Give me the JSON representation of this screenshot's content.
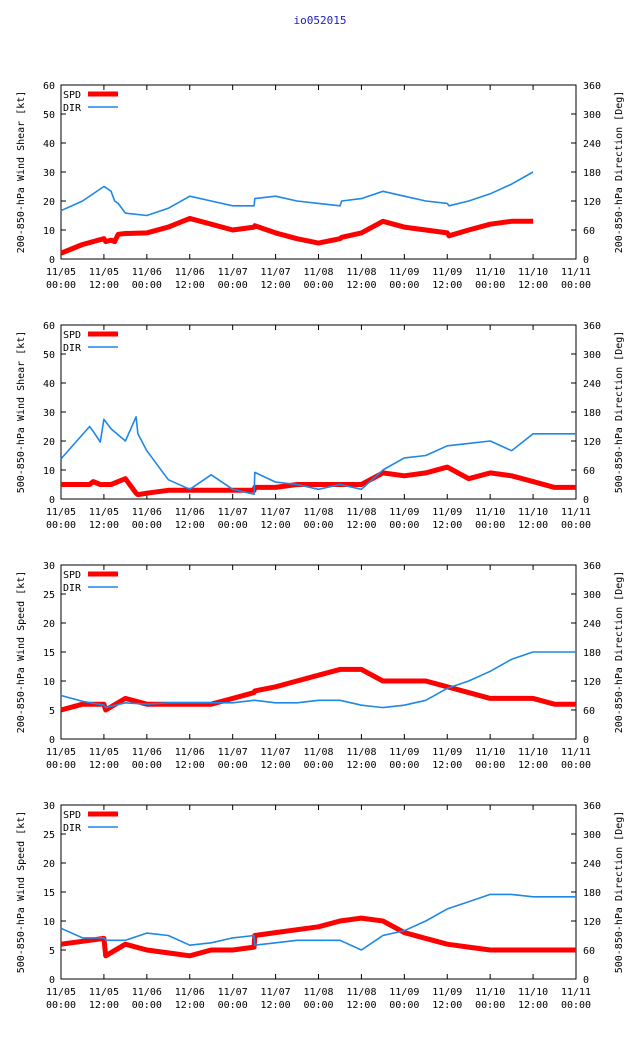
{
  "title": "io052015",
  "colors": {
    "spd": "#ff0000",
    "dir": "#1e88e5",
    "axis": "#000000",
    "grid": "#9a9a9a"
  },
  "x_ticks": [
    {
      "top": "11/05",
      "bottom": "00:00"
    },
    {
      "top": "11/05",
      "bottom": "12:00"
    },
    {
      "top": "11/06",
      "bottom": "00:00"
    },
    {
      "top": "11/06",
      "bottom": "12:00"
    },
    {
      "top": "11/07",
      "bottom": "00:00"
    },
    {
      "top": "11/07",
      "bottom": "12:00"
    },
    {
      "top": "11/08",
      "bottom": "00:00"
    },
    {
      "top": "11/08",
      "bottom": "12:00"
    },
    {
      "top": "11/09",
      "bottom": "00:00"
    },
    {
      "top": "11/09",
      "bottom": "12:00"
    },
    {
      "top": "11/10",
      "bottom": "00:00"
    },
    {
      "top": "11/10",
      "bottom": "12:00"
    },
    {
      "top": "11/11",
      "bottom": "00:00"
    }
  ],
  "chart_data": [
    {
      "type": "line",
      "ylabel": "200-850-hPa Wind Shear [kt]",
      "y2label": "200-850-hPa Direction [Deg]",
      "ylim": [
        0,
        60
      ],
      "yticks": [
        "0",
        "10",
        "20",
        "30",
        "40",
        "50",
        "60"
      ],
      "y2lim": [
        0,
        360
      ],
      "y2ticks": [
        "0",
        "60",
        "120",
        "180",
        "240",
        "300",
        "360"
      ],
      "x_unit": "hours since 11/05 00:00",
      "xlim": [
        0,
        144
      ],
      "series": [
        {
          "name": "SPD",
          "axis": "left",
          "x": [
            0,
            6,
            12,
            12.5,
            14,
            15,
            16,
            18,
            24,
            30,
            36,
            42,
            48,
            54,
            54.2,
            60,
            66,
            72,
            78,
            78.5,
            84,
            90,
            96,
            102,
            108,
            108.5,
            114,
            120,
            126,
            132
          ],
          "y": [
            2,
            5,
            7,
            6,
            6.5,
            6,
            8.5,
            8.8,
            9,
            11,
            14,
            12,
            10,
            11,
            11.5,
            9,
            7,
            5.5,
            7,
            7.5,
            9,
            13,
            11,
            10,
            9,
            8,
            10,
            12,
            13,
            13
          ]
        },
        {
          "name": "DIR",
          "axis": "right",
          "x": [
            0,
            6,
            12,
            12.5,
            14,
            15,
            16,
            18,
            24,
            30,
            36,
            42,
            48,
            54,
            54.2,
            60,
            66,
            72,
            78,
            78.5,
            84,
            90,
            96,
            102,
            108,
            108.5,
            114,
            120,
            126,
            132
          ],
          "y": [
            100,
            120,
            150,
            148,
            140,
            120,
            115,
            95,
            90,
            105,
            130,
            120,
            110,
            110,
            125,
            130,
            120,
            115,
            110,
            120,
            125,
            140,
            130,
            120,
            115,
            110,
            120,
            135,
            155,
            180
          ]
        }
      ]
    },
    {
      "type": "line",
      "ylabel": "500-850-hPa Wind Shear [kt]",
      "y2label": "500-850-hPa Direction [Deg]",
      "ylim": [
        0,
        60
      ],
      "yticks": [
        "0",
        "10",
        "20",
        "30",
        "40",
        "50",
        "60"
      ],
      "y2lim": [
        0,
        360
      ],
      "y2ticks": [
        "0",
        "60",
        "120",
        "180",
        "240",
        "300",
        "360"
      ],
      "x_unit": "hours since 11/05 00:00",
      "xlim": [
        0,
        144
      ],
      "series": [
        {
          "name": "SPD",
          "axis": "left",
          "x": [
            0,
            8,
            9,
            11,
            12,
            14,
            18,
            21,
            21.5,
            24,
            30,
            36,
            42,
            48,
            54,
            54.2,
            60,
            66,
            72,
            78,
            84,
            90,
            96,
            102,
            108,
            114,
            120,
            126,
            132,
            138,
            144
          ],
          "y": [
            5,
            5,
            6,
            5,
            5,
            5,
            7,
            2,
            1.5,
            2,
            3,
            3,
            3,
            3,
            3,
            4,
            4,
            5,
            5,
            5,
            5,
            9,
            8,
            9,
            11,
            7,
            9,
            8,
            6,
            4,
            4
          ]
        },
        {
          "name": "DIR",
          "axis": "right",
          "x": [
            0,
            8,
            9,
            11,
            12,
            14,
            18,
            21,
            21.5,
            24,
            30,
            36,
            42,
            48,
            54,
            54.2,
            60,
            66,
            72,
            78,
            84,
            90,
            96,
            102,
            108,
            114,
            120,
            126,
            132,
            138,
            144
          ],
          "y": [
            83,
            150,
            140,
            118,
            165,
            145,
            120,
            170,
            135,
            100,
            40,
            20,
            50,
            20,
            10,
            55,
            35,
            30,
            20,
            30,
            20,
            60,
            85,
            90,
            110,
            115,
            120,
            100,
            135,
            135,
            135
          ]
        }
      ]
    },
    {
      "type": "line",
      "ylabel": "200-850-hPa Wind Speed [kt]",
      "y2label": "200-850-hPa Direction [Deg]",
      "ylim": [
        0,
        30
      ],
      "yticks": [
        "0",
        "5",
        "10",
        "15",
        "20",
        "25",
        "30"
      ],
      "y2lim": [
        0,
        360
      ],
      "y2ticks": [
        "0",
        "60",
        "120",
        "180",
        "240",
        "300",
        "360"
      ],
      "x_unit": "hours since 11/05 00:00",
      "xlim": [
        0,
        144
      ],
      "series": [
        {
          "name": "SPD",
          "axis": "left",
          "x": [
            0,
            6,
            12,
            12.5,
            18,
            24,
            30,
            36,
            42,
            48,
            54,
            54.2,
            60,
            66,
            72,
            78,
            84,
            90,
            96,
            102,
            108,
            114,
            120,
            126,
            132,
            138,
            144
          ],
          "y": [
            5,
            6,
            6,
            5,
            7,
            6,
            6,
            6,
            6,
            7,
            8,
            8.3,
            9,
            10,
            11,
            12,
            12,
            10,
            10,
            10,
            9,
            8,
            7,
            7,
            7,
            6,
            6
          ]
        },
        {
          "name": "DIR",
          "axis": "right",
          "x": [
            0,
            6,
            12,
            12.5,
            18,
            24,
            30,
            36,
            42,
            48,
            54,
            54.2,
            60,
            66,
            72,
            78,
            84,
            90,
            96,
            102,
            108,
            114,
            120,
            126,
            132,
            138,
            144
          ],
          "y": [
            90,
            78,
            70,
            65,
            75,
            72,
            75,
            75,
            75,
            75,
            80,
            80,
            75,
            75,
            80,
            80,
            70,
            65,
            70,
            80,
            105,
            120,
            140,
            165,
            180,
            180,
            180
          ]
        }
      ]
    },
    {
      "type": "line",
      "ylabel": "500-850-hPa Wind Speed [kt]",
      "y2label": "500-850-hPa Direction [Deg]",
      "ylim": [
        0,
        30
      ],
      "yticks": [
        "0",
        "5",
        "10",
        "15",
        "20",
        "25",
        "30"
      ],
      "y2lim": [
        0,
        360
      ],
      "y2ticks": [
        "0",
        "60",
        "120",
        "180",
        "240",
        "300",
        "360"
      ],
      "x_unit": "hours since 11/05 00:00",
      "xlim": [
        0,
        144
      ],
      "series": [
        {
          "name": "SPD",
          "axis": "left",
          "x": [
            0,
            6,
            12,
            12.5,
            18,
            24,
            30,
            36,
            42,
            48,
            54,
            54.2,
            60,
            66,
            72,
            78,
            84,
            90,
            96,
            102,
            108,
            114,
            120,
            126,
            132,
            138,
            144
          ],
          "y": [
            6,
            6.5,
            7,
            4,
            6,
            5,
            4.5,
            4,
            5,
            5,
            5.5,
            7.5,
            8,
            8.5,
            9,
            10,
            10.5,
            10,
            8,
            7,
            6,
            5.5,
            5,
            5,
            5,
            5,
            5
          ]
        },
        {
          "name": "DIR",
          "axis": "right",
          "x": [
            0,
            6,
            12,
            12.5,
            18,
            24,
            30,
            36,
            42,
            48,
            54,
            54.2,
            60,
            66,
            72,
            78,
            84,
            90,
            96,
            102,
            108,
            114,
            120,
            126,
            132,
            138,
            144
          ],
          "y": [
            105,
            85,
            85,
            80,
            80,
            95,
            90,
            70,
            75,
            85,
            90,
            70,
            75,
            80,
            80,
            80,
            60,
            90,
            100,
            120,
            145,
            160,
            175,
            175,
            170,
            170,
            170
          ]
        }
      ]
    }
  ]
}
